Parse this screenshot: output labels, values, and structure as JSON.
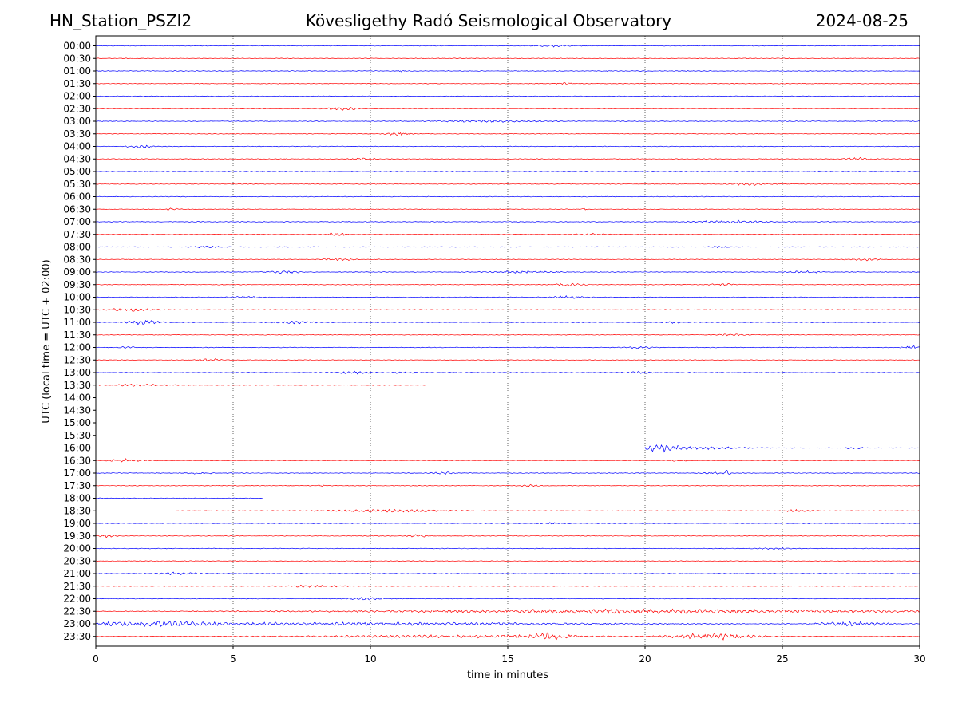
{
  "header": {
    "station": "HN_Station_PSZI2",
    "title": "Kövesligethy Radó Seismological Observatory",
    "date": "2024-08-25"
  },
  "chart_data": {
    "type": "line",
    "title": "Kövesligethy Radó Seismological Observatory",
    "xlabel": "time in minutes",
    "ylabel": "UTC (local time = UTC + 02:00)",
    "xlim": [
      0,
      30
    ],
    "x_ticks": [
      0,
      5,
      10,
      15,
      20,
      25,
      30
    ],
    "grid": "vertical dotted lines at 5-minute ticks",
    "colors": {
      "even_row": "#0000ff",
      "odd_row": "#ff0000"
    },
    "rows": [
      {
        "label": "00:00",
        "start": 0,
        "end": 30,
        "events": [
          [
            16.6,
            1.2,
            0.6
          ]
        ]
      },
      {
        "label": "00:30",
        "start": 0,
        "end": 30,
        "events": []
      },
      {
        "label": "01:00",
        "start": 0,
        "end": 30,
        "events": [
          [
            11.1,
            0.2,
            0.5
          ]
        ]
      },
      {
        "label": "01:30",
        "start": 0,
        "end": 30,
        "events": [
          [
            17.2,
            0.8,
            0.5
          ]
        ]
      },
      {
        "label": "02:00",
        "start": 0,
        "end": 30,
        "events": []
      },
      {
        "label": "02:30",
        "start": 0,
        "end": 30,
        "events": [
          [
            9.0,
            1.2,
            0.8
          ]
        ]
      },
      {
        "label": "03:00",
        "start": 0,
        "end": 30,
        "events": [
          [
            14.5,
            4.0,
            0.5
          ]
        ]
      },
      {
        "label": "03:30",
        "start": 0,
        "end": 30,
        "events": [
          [
            11.0,
            0.8,
            0.8
          ]
        ]
      },
      {
        "label": "04:00",
        "start": 0,
        "end": 30,
        "events": [
          [
            1.6,
            0.9,
            0.9
          ]
        ]
      },
      {
        "label": "04:30",
        "start": 0,
        "end": 30,
        "events": [
          [
            9.8,
            1.2,
            0.6
          ],
          [
            27.8,
            1.0,
            0.7
          ]
        ]
      },
      {
        "label": "05:00",
        "start": 0,
        "end": 30,
        "events": [
          [
            26.3,
            0.1,
            1.0
          ]
        ]
      },
      {
        "label": "05:30",
        "start": 0,
        "end": 30,
        "events": [
          [
            23.8,
            1.2,
            0.7
          ]
        ]
      },
      {
        "label": "06:00",
        "start": 0,
        "end": 30,
        "events": []
      },
      {
        "label": "06:30",
        "start": 0,
        "end": 30,
        "events": [
          [
            2.8,
            0.4,
            0.6
          ],
          [
            17.8,
            0.3,
            0.6
          ]
        ]
      },
      {
        "label": "07:00",
        "start": 0,
        "end": 30,
        "events": [
          [
            23.0,
            3.0,
            0.7
          ]
        ]
      },
      {
        "label": "07:30",
        "start": 0,
        "end": 30,
        "events": [
          [
            8.8,
            0.8,
            0.8
          ],
          [
            18.0,
            1.0,
            0.5
          ]
        ]
      },
      {
        "label": "08:00",
        "start": 0,
        "end": 30,
        "events": [
          [
            4.0,
            1.0,
            0.5
          ],
          [
            22.8,
            0.8,
            0.6
          ]
        ]
      },
      {
        "label": "08:30",
        "start": 0,
        "end": 30,
        "events": [
          [
            8.8,
            1.0,
            0.7
          ],
          [
            28.0,
            1.0,
            0.6
          ]
        ]
      },
      {
        "label": "09:00",
        "start": 0,
        "end": 30,
        "events": [
          [
            6.8,
            1.2,
            0.8
          ],
          [
            15.5,
            2.0,
            0.6
          ],
          [
            25.8,
            1.2,
            0.6
          ]
        ]
      },
      {
        "label": "09:30",
        "start": 0,
        "end": 30,
        "events": [
          [
            17.2,
            1.0,
            1.0
          ],
          [
            22.8,
            1.0,
            0.6
          ]
        ]
      },
      {
        "label": "10:00",
        "start": 0,
        "end": 30,
        "events": [
          [
            5.5,
            1.2,
            0.5
          ],
          [
            17.2,
            1.2,
            0.7
          ]
        ]
      },
      {
        "label": "10:30",
        "start": 0,
        "end": 30,
        "events": [
          [
            1.2,
            1.6,
            0.9
          ]
        ]
      },
      {
        "label": "11:00",
        "start": 0,
        "end": 30,
        "events": [
          [
            1.8,
            1.2,
            1.3
          ],
          [
            7.2,
            1.4,
            0.8
          ],
          [
            21.0,
            0.6,
            0.5
          ]
        ]
      },
      {
        "label": "11:30",
        "start": 0,
        "end": 30,
        "events": [
          [
            23.2,
            0.8,
            0.5
          ]
        ]
      },
      {
        "label": "12:00",
        "start": 0,
        "end": 30,
        "events": [
          [
            1.2,
            0.6,
            0.5
          ],
          [
            19.8,
            0.8,
            0.5
          ],
          [
            29.7,
            0.6,
            1.0
          ]
        ]
      },
      {
        "label": "12:30",
        "start": 0,
        "end": 30,
        "events": [
          [
            4.2,
            0.8,
            0.9
          ]
        ]
      },
      {
        "label": "13:00",
        "start": 0,
        "end": 30,
        "events": [
          [
            9.3,
            1.2,
            0.7
          ],
          [
            11.2,
            0.8,
            0.5
          ],
          [
            19.8,
            0.8,
            0.7
          ]
        ]
      },
      {
        "label": "13:30",
        "start": 0,
        "end": 12,
        "events": [
          [
            1.5,
            2.0,
            0.5
          ]
        ]
      },
      {
        "label": "14:00",
        "start": null,
        "end": null,
        "events": []
      },
      {
        "label": "14:30",
        "start": null,
        "end": null,
        "events": []
      },
      {
        "label": "15:00",
        "start": null,
        "end": null,
        "events": []
      },
      {
        "label": "15:30",
        "start": null,
        "end": null,
        "events": []
      },
      {
        "label": "16:00",
        "start": 20,
        "end": 30,
        "events": [
          [
            20.5,
            1.2,
            2.0
          ],
          [
            22.0,
            3.0,
            0.8
          ],
          [
            27.5,
            1.0,
            0.5
          ]
        ]
      },
      {
        "label": "16:30",
        "start": 0,
        "end": 30,
        "events": [
          [
            1.2,
            1.2,
            1.0
          ],
          [
            21.2,
            0.6,
            0.5
          ]
        ]
      },
      {
        "label": "17:00",
        "start": 0,
        "end": 30,
        "events": [
          [
            3.8,
            0.8,
            0.6
          ],
          [
            12.7,
            0.8,
            0.7
          ],
          [
            22.5,
            0.6,
            0.8
          ],
          [
            23.0,
            0.2,
            2.0
          ]
        ]
      },
      {
        "label": "17:30",
        "start": 0,
        "end": 30,
        "events": [
          [
            8.2,
            0.2,
            0.6
          ],
          [
            15.8,
            0.6,
            0.5
          ]
        ]
      },
      {
        "label": "18:00",
        "start": 0,
        "end": 6.1,
        "events": []
      },
      {
        "label": "18:30",
        "start": 2.9,
        "end": 30,
        "events": [
          [
            10.5,
            4.0,
            0.7
          ],
          [
            25.5,
            1.0,
            0.6
          ]
        ]
      },
      {
        "label": "19:00",
        "start": 0,
        "end": 30,
        "events": [
          [
            16.6,
            0.8,
            0.5
          ]
        ]
      },
      {
        "label": "19:30",
        "start": 0,
        "end": 30,
        "events": [
          [
            0.4,
            0.6,
            0.9
          ],
          [
            11.7,
            0.8,
            0.8
          ]
        ]
      },
      {
        "label": "20:00",
        "start": 0,
        "end": 30,
        "events": [
          [
            24.8,
            1.0,
            0.5
          ]
        ]
      },
      {
        "label": "20:30",
        "start": 0,
        "end": 30,
        "events": []
      },
      {
        "label": "21:00",
        "start": 0,
        "end": 30,
        "events": [
          [
            3.0,
            1.4,
            0.8
          ]
        ]
      },
      {
        "label": "21:30",
        "start": 0,
        "end": 30,
        "events": [
          [
            8.0,
            2.0,
            0.6
          ]
        ]
      },
      {
        "label": "22:00",
        "start": 0,
        "end": 30,
        "events": [
          [
            9.8,
            1.2,
            0.8
          ]
        ]
      },
      {
        "label": "22:30",
        "start": 0,
        "end": 30,
        "events": [
          [
            20.0,
            20.0,
            1.2
          ]
        ]
      },
      {
        "label": "23:00",
        "start": 0,
        "end": 30,
        "events": [
          [
            2.0,
            4.0,
            1.4
          ],
          [
            10.0,
            16.0,
            0.9
          ],
          [
            27.5,
            2.5,
            1.2
          ]
        ]
      },
      {
        "label": "23:30",
        "start": 0,
        "end": 30,
        "events": [
          [
            16.5,
            1.5,
            1.8
          ],
          [
            22.5,
            3.0,
            1.8
          ],
          [
            13.0,
            10.0,
            0.8
          ]
        ]
      }
    ]
  }
}
